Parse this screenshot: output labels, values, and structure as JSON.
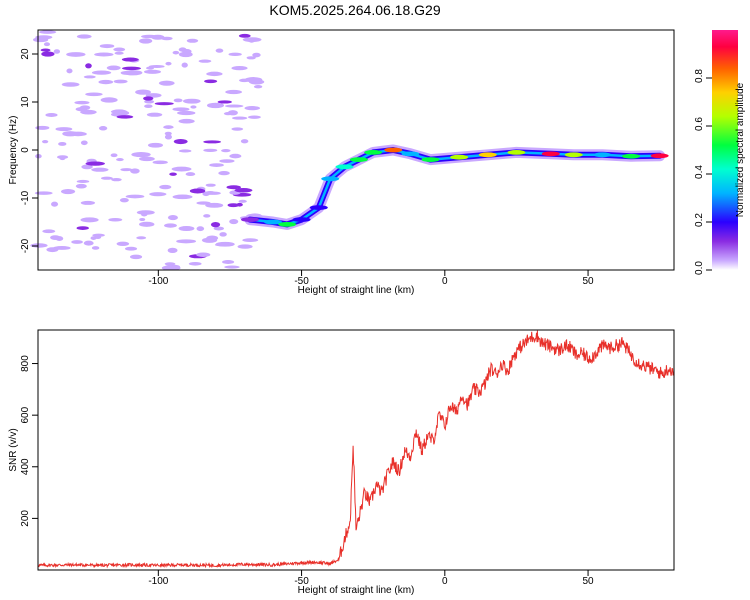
{
  "title": "KOM5.2025.264.06.18.G29",
  "chart_data": [
    {
      "type": "heatmap",
      "xlabel": "Height of straight line (km)",
      "ylabel": "Frequency (Hz)",
      "xlim": [
        -142,
        80
      ],
      "ylim": [
        -25,
        25
      ],
      "x_ticks": [
        -100,
        -50,
        0,
        50
      ],
      "y_ticks": [
        -20,
        -10,
        0,
        10,
        20
      ],
      "colorbar": {
        "label": "Normalized spectral amplitude",
        "ticks": [
          "0.0",
          "0.2",
          "0.4",
          "0.6",
          "0.8"
        ],
        "range": [
          0,
          1
        ],
        "colormap": [
          "#ffffff",
          "#c9a8ff",
          "#8a2be2",
          "#2a00ff",
          "#00b4ff",
          "#00ffd0",
          "#00ff40",
          "#b4ff00",
          "#ffd000",
          "#ff6000",
          "#ff0040",
          "#ff1a8c"
        ]
      },
      "ridge": {
        "description_points": [
          {
            "x": -68,
            "y": -14.5,
            "amp": 0.2
          },
          {
            "x": -60,
            "y": -15.0,
            "amp": 0.4
          },
          {
            "x": -55,
            "y": -15.5,
            "amp": 0.5
          },
          {
            "x": -50,
            "y": -14.5,
            "amp": 0.3
          },
          {
            "x": -44,
            "y": -12.0,
            "amp": 0.3
          },
          {
            "x": -40,
            "y": -6.0,
            "amp": 0.4
          },
          {
            "x": -35,
            "y": -3.5,
            "amp": 0.45
          },
          {
            "x": -30,
            "y": -2.0,
            "amp": 0.5
          },
          {
            "x": -25,
            "y": -0.5,
            "amp": 0.55
          },
          {
            "x": -18,
            "y": 0.0,
            "amp": 0.8
          },
          {
            "x": -12,
            "y": -0.8,
            "amp": 0.4
          },
          {
            "x": -5,
            "y": -2.0,
            "amp": 0.5
          },
          {
            "x": 5,
            "y": -1.5,
            "amp": 0.6
          },
          {
            "x": 15,
            "y": -1.0,
            "amp": 0.7
          },
          {
            "x": 25,
            "y": -0.5,
            "amp": 0.6
          },
          {
            "x": 37,
            "y": -0.8,
            "amp": 0.9
          },
          {
            "x": 45,
            "y": -1.0,
            "amp": 0.6
          },
          {
            "x": 55,
            "y": -1.0,
            "amp": 0.4
          },
          {
            "x": 65,
            "y": -1.3,
            "amp": 0.5
          },
          {
            "x": 75,
            "y": -1.2,
            "amp": 0.9
          }
        ]
      },
      "noise_region": {
        "x_from": -142,
        "x_to": -65,
        "y_from": -25,
        "y_to": 25,
        "amp": 0.15
      }
    },
    {
      "type": "line",
      "xlabel": "Height of straight line (km)",
      "ylabel": "SNR (v/v)",
      "xlim": [
        -142,
        80
      ],
      "ylim": [
        0,
        930
      ],
      "x_ticks": [
        -100,
        -50,
        0,
        50
      ],
      "y_ticks": [
        200,
        400,
        600,
        800
      ],
      "color": "#e8302a",
      "series": [
        {
          "values_xy": [
            [
              -142,
              18
            ],
            [
              -130,
              20
            ],
            [
              -120,
              18
            ],
            [
              -110,
              20
            ],
            [
              -100,
              18
            ],
            [
              -90,
              20
            ],
            [
              -80,
              18
            ],
            [
              -70,
              22
            ],
            [
              -60,
              20
            ],
            [
              -50,
              28
            ],
            [
              -45,
              30
            ],
            [
              -40,
              25
            ],
            [
              -37,
              40
            ],
            [
              -35,
              120
            ],
            [
              -33,
              190
            ],
            [
              -32,
              490
            ],
            [
              -31,
              160
            ],
            [
              -30,
              200
            ],
            [
              -28,
              300
            ],
            [
              -26,
              260
            ],
            [
              -24,
              330
            ],
            [
              -22,
              300
            ],
            [
              -20,
              370
            ],
            [
              -18,
              420
            ],
            [
              -16,
              380
            ],
            [
              -14,
              460
            ],
            [
              -12,
              440
            ],
            [
              -10,
              540
            ],
            [
              -8,
              460
            ],
            [
              -6,
              520
            ],
            [
              -4,
              500
            ],
            [
              -2,
              600
            ],
            [
              0,
              560
            ],
            [
              2,
              640
            ],
            [
              4,
              610
            ],
            [
              6,
              680
            ],
            [
              8,
              640
            ],
            [
              10,
              700
            ],
            [
              12,
              690
            ],
            [
              14,
              720
            ],
            [
              16,
              780
            ],
            [
              18,
              760
            ],
            [
              20,
              800
            ],
            [
              22,
              770
            ],
            [
              24,
              830
            ],
            [
              26,
              860
            ],
            [
              28,
              880
            ],
            [
              30,
              900
            ],
            [
              32,
              910
            ],
            [
              34,
              880
            ],
            [
              36,
              870
            ],
            [
              38,
              860
            ],
            [
              40,
              850
            ],
            [
              42,
              870
            ],
            [
              44,
              860
            ],
            [
              46,
              830
            ],
            [
              48,
              840
            ],
            [
              50,
              820
            ],
            [
              52,
              830
            ],
            [
              54,
              860
            ],
            [
              56,
              870
            ],
            [
              58,
              860
            ],
            [
              60,
              870
            ],
            [
              62,
              880
            ],
            [
              64,
              850
            ],
            [
              66,
              820
            ],
            [
              68,
              800
            ],
            [
              70,
              790
            ],
            [
              72,
              780
            ],
            [
              74,
              770
            ],
            [
              76,
              760
            ],
            [
              78,
              780
            ],
            [
              80,
              770
            ]
          ]
        }
      ]
    }
  ]
}
